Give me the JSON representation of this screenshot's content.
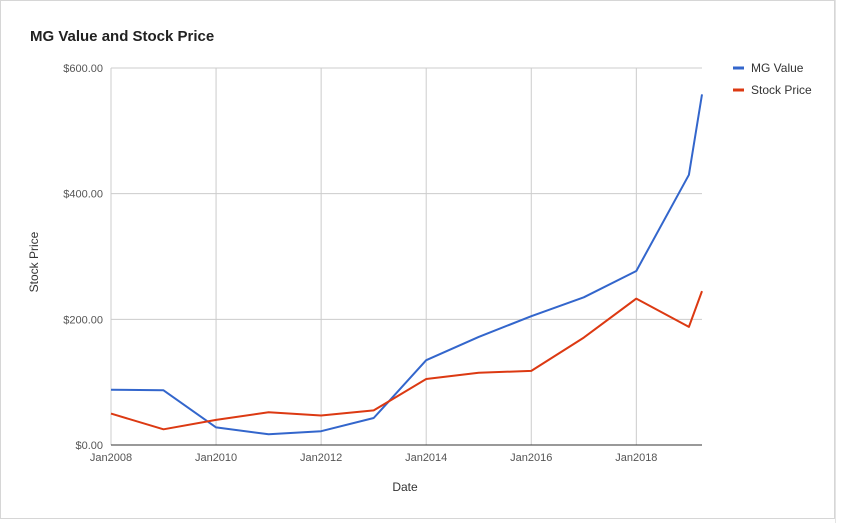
{
  "chart_data": {
    "type": "line",
    "title": "MG Value and Stock Price",
    "xlabel": "Date",
    "ylabel": "Stock Price",
    "ylim": [
      0,
      600
    ],
    "yticks": [
      "$0.00",
      "$200.00",
      "$400.00",
      "$600.00"
    ],
    "yticks_values": [
      0,
      200,
      400,
      600
    ],
    "xticks": [
      "Jan2008",
      "Jan2010",
      "Jan2012",
      "Jan2014",
      "Jan2016",
      "Jan2018"
    ],
    "xticks_values": [
      2008,
      2010,
      2012,
      2014,
      2016,
      2018
    ],
    "xlim": [
      2008,
      2019.25
    ],
    "legend_position": "right",
    "grid": true,
    "x": [
      2008.0,
      2009.0,
      2010.0,
      2011.0,
      2012.0,
      2013.0,
      2014.0,
      2015.0,
      2016.0,
      2017.0,
      2018.0,
      2019.0,
      2019.25
    ],
    "series": [
      {
        "name": "MG Value",
        "color": "#3366cc",
        "values": [
          88,
          87,
          28,
          17,
          22,
          43,
          135,
          172,
          205,
          235,
          277,
          430,
          558
        ]
      },
      {
        "name": "Stock Price",
        "color": "#dc3912",
        "values": [
          50,
          25,
          40,
          52,
          47,
          55,
          105,
          115,
          118,
          171,
          233,
          188,
          245
        ]
      }
    ]
  }
}
